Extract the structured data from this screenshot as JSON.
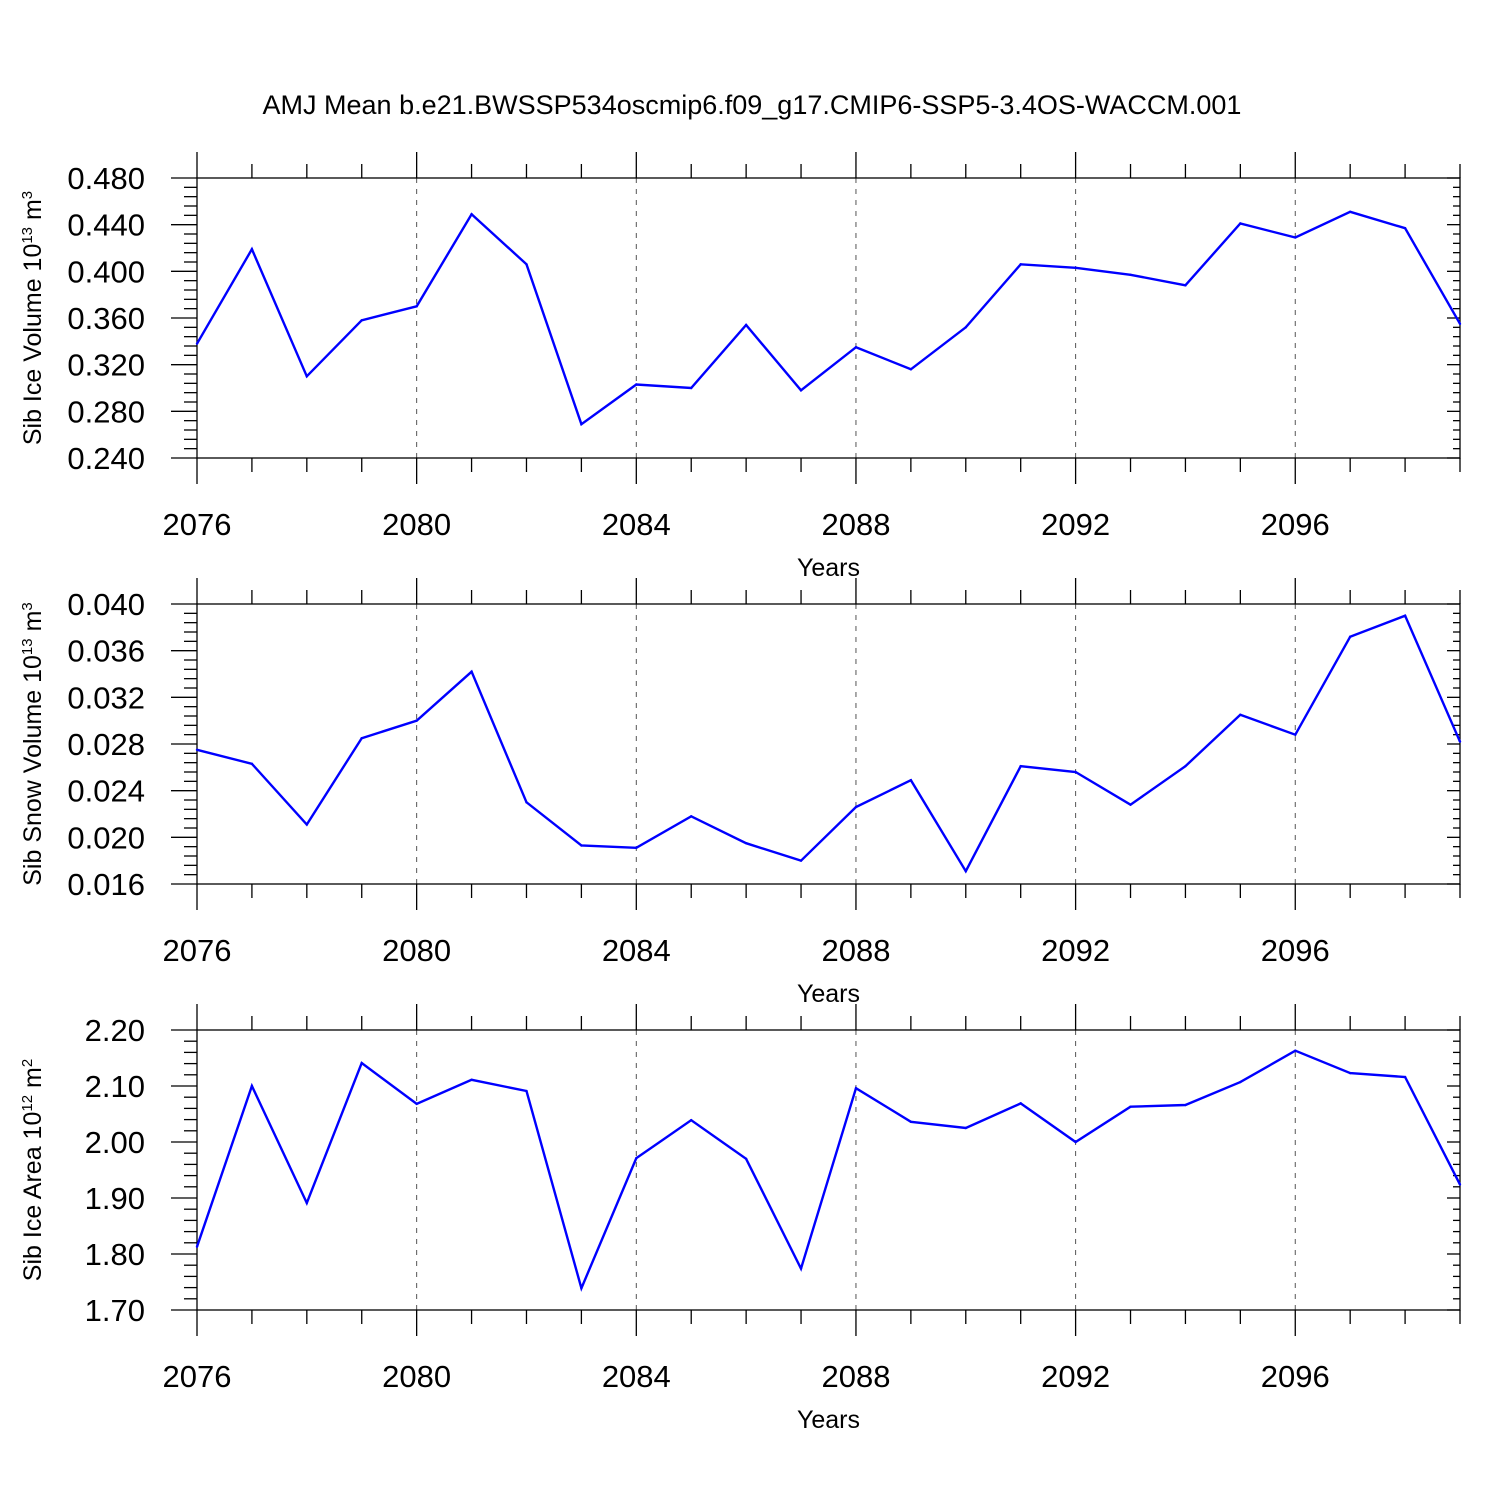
{
  "title": "AMJ Mean b.e21.BWSSP534oscmip6.f09_g17.CMIP6-SSP5-3.4OS-WACCM.001",
  "colors": {
    "line": "#0000ff",
    "axis": "#000000",
    "grid": "#555555"
  },
  "chart_data": [
    {
      "type": "line",
      "title": "AMJ Mean b.e21.BWSSP534oscmip6.f09_g17.CMIP6-SSP5-3.4OS-WACCM.001",
      "xlabel": "Years",
      "ylabel": "Sib Ice Volume 10",
      "ylabel_exp": "13",
      "ylabel_unit": " m",
      "ylabel_unit_exp": "3",
      "xlim": [
        2076,
        2099
      ],
      "ylim": [
        0.24,
        0.48
      ],
      "xticks": [
        "2076",
        "2080",
        "2084",
        "2088",
        "2092",
        "2096"
      ],
      "yticks": [
        "0.240",
        "0.280",
        "0.320",
        "0.360",
        "0.400",
        "0.440",
        "0.480"
      ],
      "x": [
        2076,
        2077,
        2078,
        2079,
        2080,
        2081,
        2082,
        2083,
        2084,
        2085,
        2086,
        2087,
        2088,
        2089,
        2090,
        2091,
        2092,
        2093,
        2094,
        2095,
        2096,
        2097,
        2098,
        2099
      ],
      "values": [
        0.338,
        0.419,
        0.31,
        0.358,
        0.37,
        0.449,
        0.406,
        0.269,
        0.303,
        0.3,
        0.354,
        0.298,
        0.335,
        0.316,
        0.352,
        0.406,
        0.403,
        0.397,
        0.388,
        0.441,
        0.429,
        0.451,
        0.437,
        0.355
      ]
    },
    {
      "type": "line",
      "xlabel": "Years",
      "ylabel": "Sib Snow Volume 10",
      "ylabel_exp": "13",
      "ylabel_unit": " m",
      "ylabel_unit_exp": "3",
      "xlim": [
        2076,
        2099
      ],
      "ylim": [
        0.016,
        0.04
      ],
      "xticks": [
        "2076",
        "2080",
        "2084",
        "2088",
        "2092",
        "2096"
      ],
      "yticks": [
        "0.016",
        "0.020",
        "0.024",
        "0.028",
        "0.032",
        "0.036",
        "0.040"
      ],
      "x": [
        2076,
        2077,
        2078,
        2079,
        2080,
        2081,
        2082,
        2083,
        2084,
        2085,
        2086,
        2087,
        2088,
        2089,
        2090,
        2091,
        2092,
        2093,
        2094,
        2095,
        2096,
        2097,
        2098,
        2099
      ],
      "values": [
        0.0275,
        0.0263,
        0.0211,
        0.0285,
        0.03,
        0.0342,
        0.023,
        0.0193,
        0.0191,
        0.0218,
        0.0195,
        0.018,
        0.0226,
        0.0249,
        0.0171,
        0.0261,
        0.0256,
        0.0228,
        0.0261,
        0.0305,
        0.0288,
        0.0372,
        0.039,
        0.0282
      ]
    },
    {
      "type": "line",
      "xlabel": "Years",
      "ylabel": "Sib Ice Area 10",
      "ylabel_exp": "12",
      "ylabel_unit": " m",
      "ylabel_unit_exp": "2",
      "xlim": [
        2076,
        2099
      ],
      "ylim": [
        1.7,
        2.2
      ],
      "xticks": [
        "2076",
        "2080",
        "2084",
        "2088",
        "2092",
        "2096"
      ],
      "yticks": [
        "1.70",
        "1.80",
        "1.90",
        "2.00",
        "2.10",
        "2.20"
      ],
      "x": [
        2076,
        2077,
        2078,
        2079,
        2080,
        2081,
        2082,
        2083,
        2084,
        2085,
        2086,
        2087,
        2088,
        2089,
        2090,
        2091,
        2092,
        2093,
        2094,
        2095,
        2096,
        2097,
        2098,
        2099
      ],
      "values": [
        1.813,
        2.1,
        1.891,
        2.141,
        2.068,
        2.111,
        2.091,
        1.739,
        1.971,
        2.039,
        1.97,
        1.774,
        2.096,
        2.036,
        2.025,
        2.069,
        2.0,
        2.063,
        2.066,
        2.107,
        2.163,
        2.123,
        2.116,
        1.924
      ]
    }
  ]
}
